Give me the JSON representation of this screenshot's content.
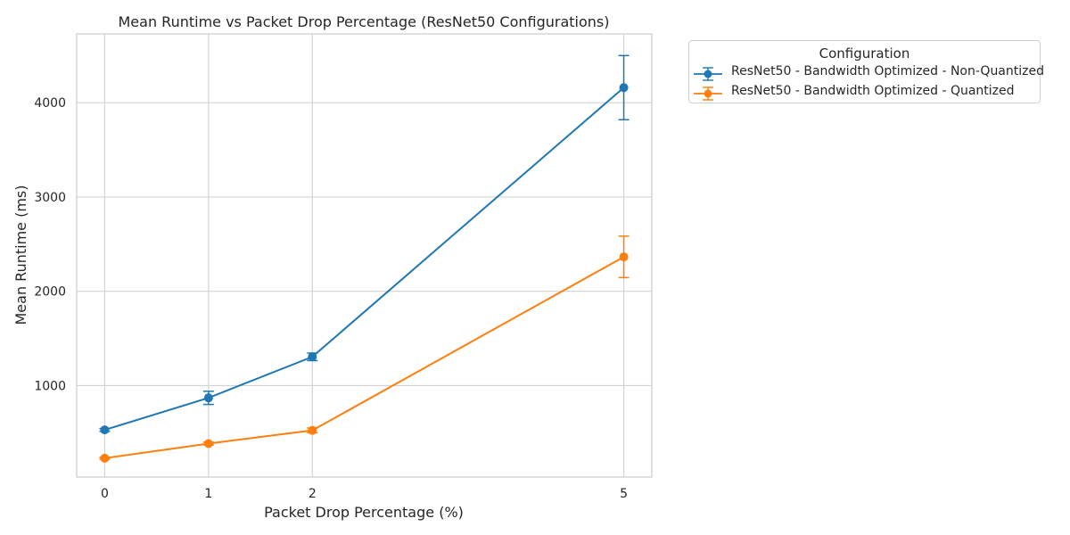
{
  "chart_data": {
    "type": "line",
    "title": "Mean Runtime vs Packet Drop Percentage (ResNet50 Configurations)",
    "xlabel": "Packet Drop Percentage (%)",
    "ylabel": "Mean Runtime (ms)",
    "x": [
      0,
      1,
      2,
      5
    ],
    "x_ticks": [
      "0",
      "1",
      "2",
      "5"
    ],
    "y_ticks": [
      1000,
      2000,
      3000,
      4000
    ],
    "xlim": [
      -0.27,
      5.27
    ],
    "ylim": [
      30,
      4730
    ],
    "grid": true,
    "legend": {
      "title": "Configuration",
      "placement": "outside top-right"
    },
    "series": [
      {
        "name": "ResNet50 - Bandwidth Optimized - Non-Quantized",
        "color": "#1f77b4",
        "values": [
          530,
          870,
          1305,
          4160
        ],
        "error": [
          15,
          70,
          40,
          340
        ]
      },
      {
        "name": "ResNet50 - Bandwidth Optimized - Quantized",
        "color": "#ff7f0e",
        "values": [
          230,
          385,
          525,
          2365
        ],
        "error": [
          10,
          15,
          25,
          220
        ]
      }
    ]
  }
}
